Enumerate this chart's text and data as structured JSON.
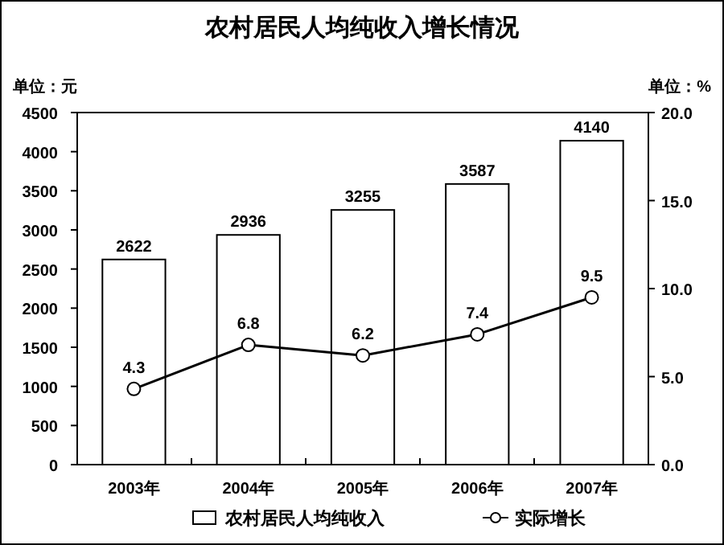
{
  "chart_data": {
    "type": "bar",
    "title": "农村居民人均纯收入增长情况",
    "ylabel": "单位：元",
    "y2label": "单位：%",
    "categories": [
      "2003年",
      "2004年",
      "2005年",
      "2006年",
      "2007年"
    ],
    "series": [
      {
        "name": "农村居民人均纯收入",
        "color": "#ffffff",
        "values": [
          2622,
          2936,
          3255,
          3587,
          4140
        ]
      },
      {
        "name": "实际增长",
        "type": "line",
        "axis": "y2",
        "color": "#000000",
        "marker": "circle",
        "values": [
          4.3,
          6.8,
          6.2,
          7.4,
          9.5
        ]
      }
    ],
    "ylim": [
      0,
      4500
    ],
    "yticks": [
      0,
      500,
      1000,
      1500,
      2000,
      2500,
      3000,
      3500,
      4000,
      4500
    ],
    "y2lim": [
      0,
      20
    ],
    "y2ticks": [
      {
        "value": 0,
        "label": "0.0"
      },
      {
        "value": 5,
        "label": "5.0"
      },
      {
        "value": 10,
        "label": "10.0"
      },
      {
        "value": 15,
        "label": "15.0"
      },
      {
        "value": 20,
        "label": "20.0"
      }
    ],
    "data_labels": true,
    "legend": "bottom",
    "grid": false
  }
}
